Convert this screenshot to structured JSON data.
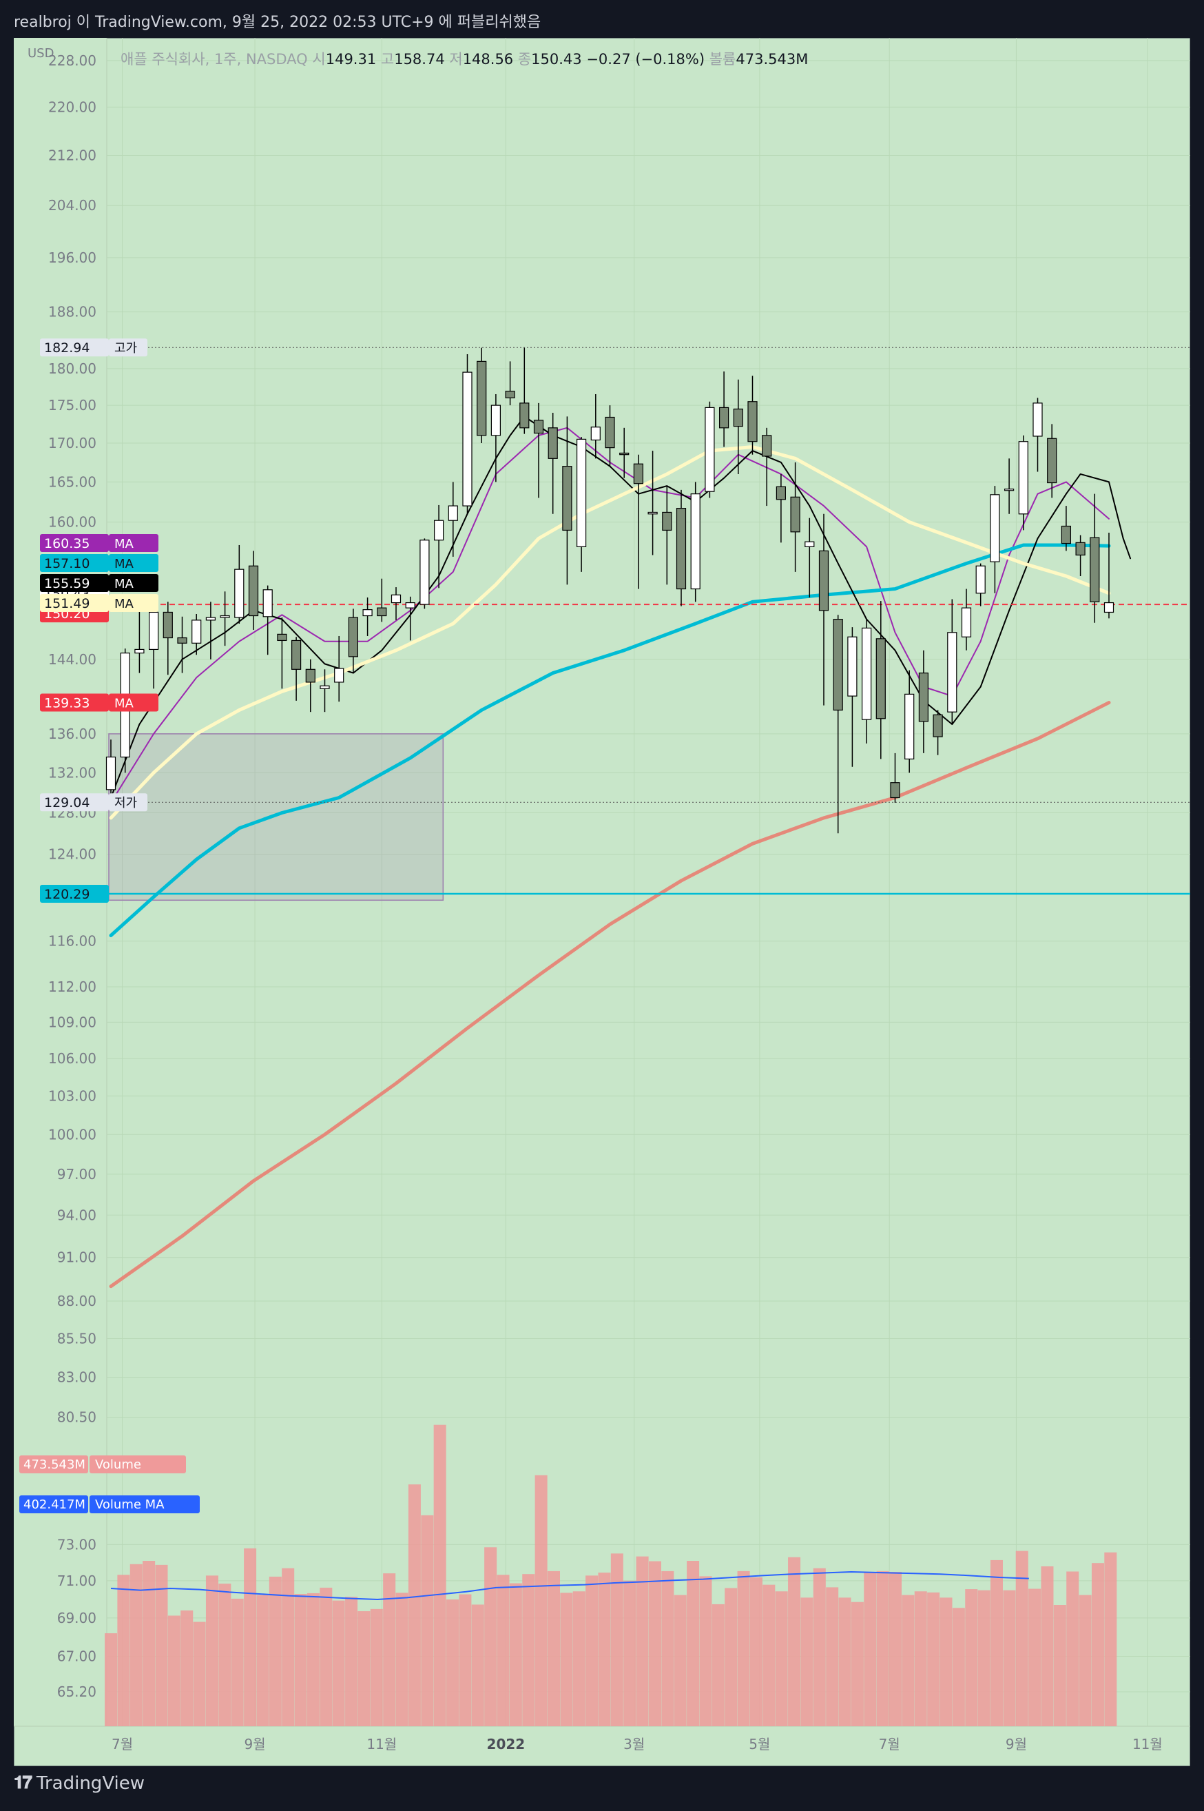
{
  "header": {
    "title": "realbroj 이 TradingView.com, 9월 25, 2022 02:53 UTC+9 에 퍼블리쉬했음"
  },
  "brand": {
    "name": "TradingView"
  },
  "colors": {
    "background": "#c8e6c9",
    "axis_text": "#787b86",
    "bull_body": "#ffffff",
    "bear_body": "#7b8b76",
    "ma_purple": "#9c27b0",
    "ma_cyan": "#00bcd4",
    "ma_black": "#000000",
    "ma_cream": "#fff9c4",
    "ma_salmon": "#e5897a",
    "current_price_line": "#f23645",
    "volume_bar": "#ef9a9a",
    "volume_ma": "#2962ff"
  },
  "chart_data": {
    "type": "candlestick",
    "symbol_line": {
      "name": "애플 주식회사, 1주, NASDAQ",
      "o_label": "시",
      "o": "149.31",
      "h_label": "고",
      "h": "158.74",
      "l_label": "저",
      "l": "148.56",
      "c_label": "종",
      "c": "150.43",
      "change": "−0.27 (−0.18%)",
      "vol_label": "볼륨",
      "vol": "473.543M"
    },
    "currency": "USD",
    "price_axis": {
      "scale": "log",
      "range": [
        63.5,
        232
      ],
      "ticks": [
        "228.00",
        "220.00",
        "212.00",
        "204.00",
        "196.00",
        "188.00",
        "180.00",
        "175.00",
        "170.00",
        "165.00",
        "160.00",
        "144.00",
        "136.00",
        "132.00",
        "128.00",
        "124.00",
        "116.00",
        "112.00",
        "109.00",
        "106.00",
        "103.00",
        "100.00",
        "97.00",
        "94.00",
        "91.00",
        "88.00",
        "85.50",
        "83.00",
        "80.50",
        "73.00",
        "71.00",
        "69.00",
        "67.00",
        "65.20"
      ]
    },
    "time_axis": {
      "labels": [
        {
          "text": "7월",
          "week": 0.8
        },
        {
          "text": "9월",
          "week": 10.1
        },
        {
          "text": "11월",
          "week": 19.0
        },
        {
          "text": "2022",
          "week": 27.7
        },
        {
          "text": "3월",
          "week": 36.7
        },
        {
          "text": "5월",
          "week": 45.5
        },
        {
          "text": "7월",
          "week": 54.6
        },
        {
          "text": "9월",
          "week": 63.5
        },
        {
          "text": "11월",
          "week": 72.7
        }
      ],
      "bold": [
        "2022"
      ]
    },
    "candles": [
      [
        130.3,
        135.4,
        129.0,
        133.6
      ],
      [
        133.6,
        145.2,
        132.0,
        144.7
      ],
      [
        144.7,
        150.0,
        142.5,
        145.1
      ],
      [
        145.1,
        149.6,
        140.8,
        149.3
      ],
      [
        149.3,
        150.5,
        142.3,
        146.4
      ],
      [
        146.4,
        148.8,
        142.5,
        145.8
      ],
      [
        145.8,
        149.1,
        144.5,
        148.4
      ],
      [
        148.4,
        150.5,
        144.0,
        148.7
      ],
      [
        148.7,
        151.7,
        145.5,
        148.9
      ],
      [
        148.7,
        157.2,
        148.0,
        154.3
      ],
      [
        154.7,
        156.5,
        147.3,
        148.9
      ],
      [
        148.8,
        152.4,
        144.5,
        151.9
      ],
      [
        146.8,
        148.7,
        140.8,
        146.1
      ],
      [
        146.1,
        146.5,
        139.5,
        142.9
      ],
      [
        142.9,
        144.0,
        138.3,
        141.5
      ],
      [
        140.8,
        142.9,
        138.3,
        141.1
      ],
      [
        141.5,
        146.6,
        139.4,
        143.0
      ],
      [
        148.7,
        149.7,
        142.5,
        144.3
      ],
      [
        148.9,
        151.0,
        146.6,
        149.6
      ],
      [
        149.8,
        153.2,
        148.2,
        148.9
      ],
      [
        150.4,
        152.2,
        148.4,
        151.3
      ],
      [
        149.8,
        151.1,
        146.1,
        150.4
      ],
      [
        150.2,
        158.0,
        149.7,
        157.8
      ],
      [
        157.8,
        162.1,
        152.1,
        160.2
      ],
      [
        160.2,
        165.0,
        155.8,
        162.0
      ],
      [
        162.0,
        182.0,
        161.0,
        179.5
      ],
      [
        181.0,
        182.9,
        170.0,
        171.0
      ],
      [
        171.0,
        176.5,
        165.0,
        175.0
      ],
      [
        176.9,
        181.0,
        175.0,
        176.0
      ],
      [
        175.3,
        182.9,
        171.2,
        172.0
      ],
      [
        173.0,
        175.3,
        163.0,
        171.3
      ],
      [
        172.0,
        174.0,
        161.0,
        168.0
      ],
      [
        167.0,
        173.5,
        152.5,
        159.0
      ],
      [
        157.0,
        170.8,
        154.0,
        170.5
      ],
      [
        170.4,
        176.5,
        168.0,
        172.1
      ],
      [
        173.4,
        175.0,
        167.0,
        169.4
      ],
      [
        168.7,
        172.0,
        165.5,
        168.5
      ],
      [
        167.3,
        168.5,
        152.0,
        164.8
      ],
      [
        161.0,
        169.0,
        156.0,
        161.2
      ],
      [
        161.2,
        164.5,
        152.5,
        159.0
      ],
      [
        161.7,
        164.0,
        150.0,
        152.0
      ],
      [
        152.0,
        165.0,
        150.5,
        163.5
      ],
      [
        163.8,
        175.5,
        163.0,
        174.7
      ],
      [
        174.7,
        179.6,
        169.5,
        172.0
      ],
      [
        174.5,
        178.5,
        166.0,
        172.2
      ],
      [
        175.5,
        179.0,
        168.5,
        170.2
      ],
      [
        171.0,
        172.0,
        162.0,
        168.3
      ],
      [
        164.4,
        166.0,
        157.5,
        162.8
      ],
      [
        163.1,
        167.5,
        154.0,
        158.8
      ],
      [
        157.0,
        160.5,
        151.0,
        157.6
      ],
      [
        156.5,
        161.0,
        139.0,
        149.5
      ],
      [
        148.5,
        149.0,
        126.0,
        138.5
      ],
      [
        140.0,
        147.6,
        132.6,
        146.5
      ],
      [
        137.5,
        148.5,
        135.0,
        147.5
      ],
      [
        146.3,
        150.6,
        133.4,
        137.6
      ],
      [
        131.0,
        134.0,
        129.0,
        129.5
      ],
      [
        133.4,
        142.8,
        132.0,
        140.2
      ],
      [
        142.5,
        145.0,
        134.0,
        137.3
      ],
      [
        138.0,
        138.5,
        133.8,
        135.7
      ],
      [
        138.3,
        150.8,
        137.0,
        147.0
      ],
      [
        146.5,
        152.0,
        145.0,
        149.8
      ],
      [
        151.5,
        155.0,
        150.0,
        154.7
      ],
      [
        155.2,
        164.5,
        151.5,
        163.4
      ],
      [
        164.0,
        168.0,
        161.0,
        164.1
      ],
      [
        161.0,
        171.0,
        159.0,
        170.2
      ],
      [
        170.9,
        176.0,
        166.3,
        175.3
      ],
      [
        170.6,
        172.5,
        163.0,
        164.9
      ],
      [
        159.5,
        162.0,
        156.5,
        157.4
      ],
      [
        157.5,
        158.4,
        153.5,
        156.0
      ],
      [
        158.1,
        163.5,
        148.1,
        150.5
      ],
      [
        149.3,
        158.7,
        148.6,
        150.4
      ]
    ],
    "ma_series": [
      {
        "name": "MA",
        "label": "160.35",
        "color": "#9c27b0",
        "width": 2,
        "points": [
          [
            0,
            129
          ],
          [
            3,
            136
          ],
          [
            6,
            142
          ],
          [
            9,
            146
          ],
          [
            12,
            149
          ],
          [
            15,
            146
          ],
          [
            18,
            146
          ],
          [
            21,
            149.5
          ],
          [
            24,
            154
          ],
          [
            27,
            166
          ],
          [
            30,
            171
          ],
          [
            32,
            172
          ],
          [
            35,
            167.5
          ],
          [
            38,
            164
          ],
          [
            41,
            163
          ],
          [
            44,
            168.5
          ],
          [
            47,
            166
          ],
          [
            50,
            162
          ],
          [
            53,
            157
          ],
          [
            55,
            147
          ],
          [
            57,
            141
          ],
          [
            59,
            140
          ],
          [
            61,
            146
          ],
          [
            63,
            156
          ],
          [
            65,
            163.5
          ],
          [
            67,
            165
          ],
          [
            70,
            160.4
          ]
        ]
      },
      {
        "name": "MA",
        "label": "157.10",
        "color": "#00bcd4",
        "width": 5,
        "points": [
          [
            0,
            116.5
          ],
          [
            3,
            120
          ],
          [
            6,
            123.5
          ],
          [
            9,
            126.5
          ],
          [
            12,
            128
          ],
          [
            16,
            129.5
          ],
          [
            21,
            133.5
          ],
          [
            26,
            138.5
          ],
          [
            31,
            142.5
          ],
          [
            36,
            145
          ],
          [
            41,
            148
          ],
          [
            45,
            150.5
          ],
          [
            50,
            151.3
          ],
          [
            55,
            152
          ],
          [
            60,
            155
          ],
          [
            64,
            157.2
          ],
          [
            67,
            157.2
          ],
          [
            70,
            157.1
          ]
        ]
      },
      {
        "name": "MA",
        "label": "155.59",
        "color": "#000000",
        "width": 2,
        "points": [
          [
            0,
            129.5
          ],
          [
            2,
            137
          ],
          [
            5,
            144
          ],
          [
            8,
            147
          ],
          [
            10,
            149.5
          ],
          [
            12,
            148.5
          ],
          [
            15,
            143.5
          ],
          [
            17,
            142.5
          ],
          [
            19,
            145
          ],
          [
            21,
            149
          ],
          [
            23,
            153.5
          ],
          [
            25,
            161
          ],
          [
            27,
            168
          ],
          [
            28,
            171
          ],
          [
            29,
            173.5
          ],
          [
            31,
            171
          ],
          [
            33,
            169.5
          ],
          [
            35,
            167
          ],
          [
            37,
            163.5
          ],
          [
            39,
            164.5
          ],
          [
            41,
            162.5
          ],
          [
            43,
            165.5
          ],
          [
            45,
            169
          ],
          [
            47,
            167.5
          ],
          [
            49,
            162
          ],
          [
            51,
            155
          ],
          [
            53,
            148.5
          ],
          [
            55,
            145
          ],
          [
            57,
            139.5
          ],
          [
            59,
            137
          ],
          [
            61,
            141
          ],
          [
            63,
            149.5
          ],
          [
            65,
            158
          ],
          [
            67,
            163.5
          ],
          [
            68,
            166
          ],
          [
            70,
            165
          ],
          [
            71,
            158
          ],
          [
            71.5,
            155.6
          ]
        ]
      },
      {
        "name": "MA",
        "label": "151.49",
        "color": "#fff9c4",
        "width": 5,
        "points": [
          [
            0,
            127.5
          ],
          [
            3,
            132
          ],
          [
            6,
            136
          ],
          [
            9,
            138.5
          ],
          [
            12,
            140.5
          ],
          [
            16,
            142.5
          ],
          [
            20,
            145
          ],
          [
            24,
            148
          ],
          [
            27,
            152.5
          ],
          [
            30,
            158
          ],
          [
            33,
            161
          ],
          [
            36,
            163.5
          ],
          [
            39,
            166
          ],
          [
            42,
            169
          ],
          [
            45,
            169.5
          ],
          [
            48,
            168
          ],
          [
            52,
            164
          ],
          [
            56,
            160
          ],
          [
            60,
            157.5
          ],
          [
            64,
            155
          ],
          [
            67,
            153.5
          ],
          [
            70,
            151.5
          ]
        ]
      },
      {
        "name": "MA",
        "label": "139.33",
        "color": "#e5897a",
        "width": 5,
        "points": [
          [
            0,
            89
          ],
          [
            5,
            92.5
          ],
          [
            10,
            96.5
          ],
          [
            15,
            100
          ],
          [
            20,
            104
          ],
          [
            25,
            108.5
          ],
          [
            30,
            113
          ],
          [
            35,
            117.5
          ],
          [
            40,
            121.5
          ],
          [
            45,
            125
          ],
          [
            50,
            127.5
          ],
          [
            55,
            129.5
          ],
          [
            60,
            132.5
          ],
          [
            65,
            135.5
          ],
          [
            70,
            139.3
          ]
        ]
      }
    ],
    "price_lines": [
      {
        "name": "high",
        "value": 182.94,
        "label": "182.94",
        "tag": "고가",
        "style": "dotted"
      },
      {
        "name": "low",
        "value": 129.04,
        "label": "129.04",
        "tag": "저가",
        "style": "dotted"
      },
      {
        "name": "current",
        "value": 150.2,
        "label": "150.20",
        "style": "dashed"
      },
      {
        "name": "close",
        "value": 150.43,
        "label": "150.43"
      },
      {
        "name": "horizontal",
        "value": 120.29,
        "label": "120.29",
        "style": "solid"
      }
    ],
    "rectangle": {
      "start_week": 0,
      "end_week": 23.3,
      "top": 136.0,
      "bottom": 119.7
    },
    "volume": {
      "label": "Volume",
      "value_label": "473.543M",
      "ma_label": "Volume MA",
      "ma_value_label": "402.417M",
      "values_m": [
        253,
        412,
        441,
        450,
        439,
        301,
        315,
        284,
        410,
        388,
        347,
        484,
        357,
        407,
        430,
        360,
        362,
        377,
        342,
        352,
        313,
        319,
        416,
        363,
        658,
        574,
        820,
        345,
        359,
        331,
        487,
        412,
        389,
        414,
        683,
        422,
        363,
        367,
        410,
        418,
        470,
        396,
        462,
        449,
        422,
        357,
        450,
        408,
        332,
        376,
        422,
        405,
        385,
        367,
        460,
        350,
        430,
        378,
        350,
        338,
        418,
        422,
        420,
        357,
        367,
        364,
        350,
        322,
        373,
        370,
        452,
        370,
        477,
        374,
        435,
        330,
        421,
        357,
        444,
        473
      ],
      "ma_values_m": [
        375,
        370,
        375,
        372,
        365,
        360,
        355,
        352,
        348,
        345,
        350,
        358,
        366,
        377,
        380,
        383,
        385,
        390,
        393,
        397,
        400,
        405,
        410,
        414,
        417,
        420,
        418,
        416,
        414,
        410,
        405,
        402
      ]
    }
  }
}
